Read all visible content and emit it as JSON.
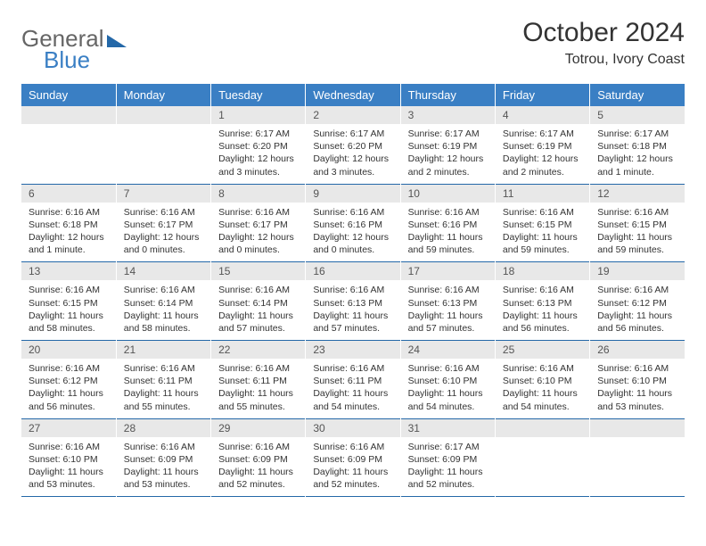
{
  "brand": {
    "part1": "General",
    "part2": "Blue"
  },
  "header": {
    "month_title": "October 2024",
    "location": "Totrou, Ivory Coast"
  },
  "colors": {
    "header_bg": "#3a7fc4",
    "header_text": "#ffffff",
    "daynum_bg": "#e8e8e8",
    "border": "#2468a8",
    "page_bg": "#ffffff",
    "body_text": "#333333"
  },
  "typography": {
    "month_title_fontsize": 30,
    "location_fontsize": 16,
    "weekday_fontsize": 13,
    "daynum_fontsize": 12,
    "body_fontsize": 10.5
  },
  "weekdays": [
    "Sunday",
    "Monday",
    "Tuesday",
    "Wednesday",
    "Thursday",
    "Friday",
    "Saturday"
  ],
  "weeks": [
    [
      {
        "n": "",
        "sr": "",
        "ss": "",
        "dl": ""
      },
      {
        "n": "",
        "sr": "",
        "ss": "",
        "dl": ""
      },
      {
        "n": "1",
        "sr": "Sunrise: 6:17 AM",
        "ss": "Sunset: 6:20 PM",
        "dl": "Daylight: 12 hours and 3 minutes."
      },
      {
        "n": "2",
        "sr": "Sunrise: 6:17 AM",
        "ss": "Sunset: 6:20 PM",
        "dl": "Daylight: 12 hours and 3 minutes."
      },
      {
        "n": "3",
        "sr": "Sunrise: 6:17 AM",
        "ss": "Sunset: 6:19 PM",
        "dl": "Daylight: 12 hours and 2 minutes."
      },
      {
        "n": "4",
        "sr": "Sunrise: 6:17 AM",
        "ss": "Sunset: 6:19 PM",
        "dl": "Daylight: 12 hours and 2 minutes."
      },
      {
        "n": "5",
        "sr": "Sunrise: 6:17 AM",
        "ss": "Sunset: 6:18 PM",
        "dl": "Daylight: 12 hours and 1 minute."
      }
    ],
    [
      {
        "n": "6",
        "sr": "Sunrise: 6:16 AM",
        "ss": "Sunset: 6:18 PM",
        "dl": "Daylight: 12 hours and 1 minute."
      },
      {
        "n": "7",
        "sr": "Sunrise: 6:16 AM",
        "ss": "Sunset: 6:17 PM",
        "dl": "Daylight: 12 hours and 0 minutes."
      },
      {
        "n": "8",
        "sr": "Sunrise: 6:16 AM",
        "ss": "Sunset: 6:17 PM",
        "dl": "Daylight: 12 hours and 0 minutes."
      },
      {
        "n": "9",
        "sr": "Sunrise: 6:16 AM",
        "ss": "Sunset: 6:16 PM",
        "dl": "Daylight: 12 hours and 0 minutes."
      },
      {
        "n": "10",
        "sr": "Sunrise: 6:16 AM",
        "ss": "Sunset: 6:16 PM",
        "dl": "Daylight: 11 hours and 59 minutes."
      },
      {
        "n": "11",
        "sr": "Sunrise: 6:16 AM",
        "ss": "Sunset: 6:15 PM",
        "dl": "Daylight: 11 hours and 59 minutes."
      },
      {
        "n": "12",
        "sr": "Sunrise: 6:16 AM",
        "ss": "Sunset: 6:15 PM",
        "dl": "Daylight: 11 hours and 59 minutes."
      }
    ],
    [
      {
        "n": "13",
        "sr": "Sunrise: 6:16 AM",
        "ss": "Sunset: 6:15 PM",
        "dl": "Daylight: 11 hours and 58 minutes."
      },
      {
        "n": "14",
        "sr": "Sunrise: 6:16 AM",
        "ss": "Sunset: 6:14 PM",
        "dl": "Daylight: 11 hours and 58 minutes."
      },
      {
        "n": "15",
        "sr": "Sunrise: 6:16 AM",
        "ss": "Sunset: 6:14 PM",
        "dl": "Daylight: 11 hours and 57 minutes."
      },
      {
        "n": "16",
        "sr": "Sunrise: 6:16 AM",
        "ss": "Sunset: 6:13 PM",
        "dl": "Daylight: 11 hours and 57 minutes."
      },
      {
        "n": "17",
        "sr": "Sunrise: 6:16 AM",
        "ss": "Sunset: 6:13 PM",
        "dl": "Daylight: 11 hours and 57 minutes."
      },
      {
        "n": "18",
        "sr": "Sunrise: 6:16 AM",
        "ss": "Sunset: 6:13 PM",
        "dl": "Daylight: 11 hours and 56 minutes."
      },
      {
        "n": "19",
        "sr": "Sunrise: 6:16 AM",
        "ss": "Sunset: 6:12 PM",
        "dl": "Daylight: 11 hours and 56 minutes."
      }
    ],
    [
      {
        "n": "20",
        "sr": "Sunrise: 6:16 AM",
        "ss": "Sunset: 6:12 PM",
        "dl": "Daylight: 11 hours and 56 minutes."
      },
      {
        "n": "21",
        "sr": "Sunrise: 6:16 AM",
        "ss": "Sunset: 6:11 PM",
        "dl": "Daylight: 11 hours and 55 minutes."
      },
      {
        "n": "22",
        "sr": "Sunrise: 6:16 AM",
        "ss": "Sunset: 6:11 PM",
        "dl": "Daylight: 11 hours and 55 minutes."
      },
      {
        "n": "23",
        "sr": "Sunrise: 6:16 AM",
        "ss": "Sunset: 6:11 PM",
        "dl": "Daylight: 11 hours and 54 minutes."
      },
      {
        "n": "24",
        "sr": "Sunrise: 6:16 AM",
        "ss": "Sunset: 6:10 PM",
        "dl": "Daylight: 11 hours and 54 minutes."
      },
      {
        "n": "25",
        "sr": "Sunrise: 6:16 AM",
        "ss": "Sunset: 6:10 PM",
        "dl": "Daylight: 11 hours and 54 minutes."
      },
      {
        "n": "26",
        "sr": "Sunrise: 6:16 AM",
        "ss": "Sunset: 6:10 PM",
        "dl": "Daylight: 11 hours and 53 minutes."
      }
    ],
    [
      {
        "n": "27",
        "sr": "Sunrise: 6:16 AM",
        "ss": "Sunset: 6:10 PM",
        "dl": "Daylight: 11 hours and 53 minutes."
      },
      {
        "n": "28",
        "sr": "Sunrise: 6:16 AM",
        "ss": "Sunset: 6:09 PM",
        "dl": "Daylight: 11 hours and 53 minutes."
      },
      {
        "n": "29",
        "sr": "Sunrise: 6:16 AM",
        "ss": "Sunset: 6:09 PM",
        "dl": "Daylight: 11 hours and 52 minutes."
      },
      {
        "n": "30",
        "sr": "Sunrise: 6:16 AM",
        "ss": "Sunset: 6:09 PM",
        "dl": "Daylight: 11 hours and 52 minutes."
      },
      {
        "n": "31",
        "sr": "Sunrise: 6:17 AM",
        "ss": "Sunset: 6:09 PM",
        "dl": "Daylight: 11 hours and 52 minutes."
      },
      {
        "n": "",
        "sr": "",
        "ss": "",
        "dl": ""
      },
      {
        "n": "",
        "sr": "",
        "ss": "",
        "dl": ""
      }
    ]
  ]
}
